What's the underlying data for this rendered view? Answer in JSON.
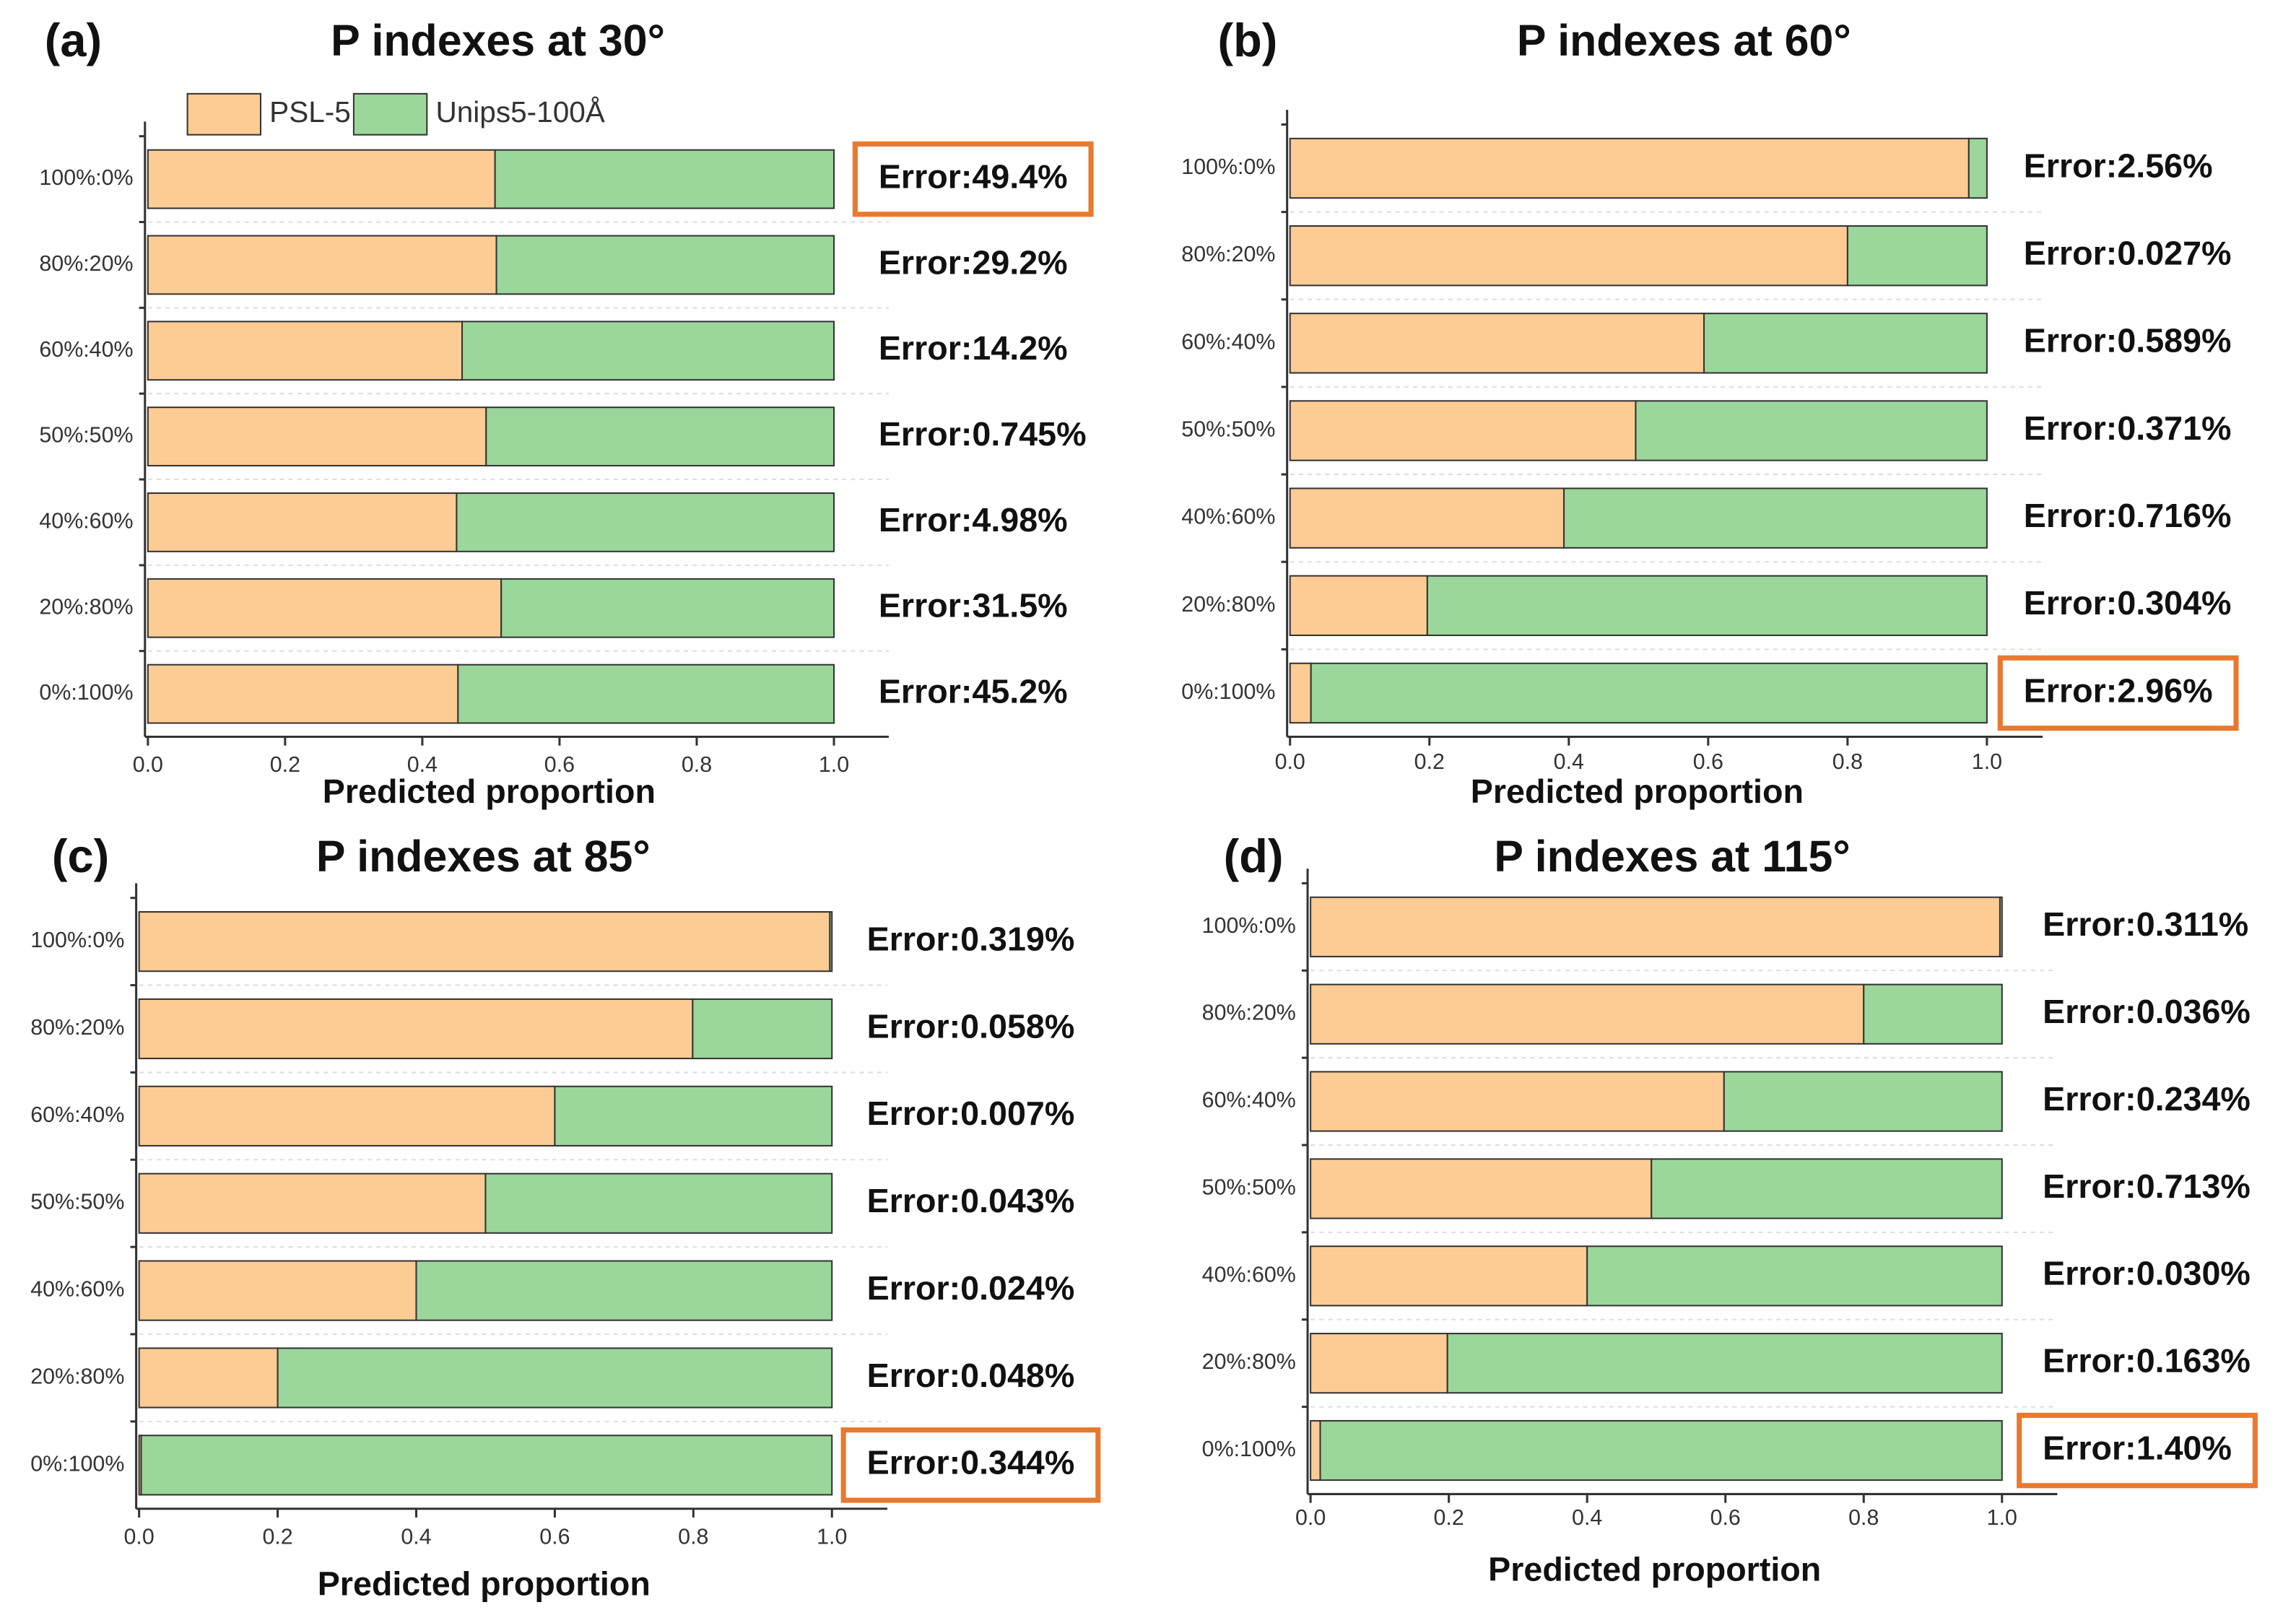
{
  "chart_data": [
    {
      "type": "stacked_barh",
      "panel": "(a)",
      "title": "P indexes at 30°",
      "xlabel": "Predicted proportion",
      "categories": [
        "100%:0%",
        "80%:20%",
        "60%:40%",
        "50%:50%",
        "40%:60%",
        "20%:80%",
        "0%:100%"
      ],
      "series": [
        {
          "name": "PSL-5",
          "color": "#fdcb94",
          "values": [
            0.506,
            0.508,
            0.458,
            0.493,
            0.45,
            0.515,
            0.452
          ]
        },
        {
          "name": "Unips5-100Å",
          "color": "#9bd69b",
          "values": [
            0.494,
            0.492,
            0.542,
            0.507,
            0.55,
            0.485,
            0.548
          ]
        }
      ],
      "annotations": [
        "Error:49.4%",
        "Error:29.2%",
        "Error:14.2%",
        "Error:0.745%",
        "Error:4.98%",
        "Error:31.5%",
        "Error:45.2%"
      ],
      "boxed_annotation": 0,
      "legend": true,
      "xlim": [
        0,
        1.08
      ],
      "xticks": [
        {
          "value": 0,
          "label": "0.0"
        },
        0.2,
        0.4,
        0.6,
        0.8,
        {
          "value": 1,
          "label": "1.0"
        }
      ]
    },
    {
      "type": "stacked_barh",
      "panel": "(b)",
      "title": "P indexes at 60°",
      "xlabel": "Predicted proportion",
      "categories": [
        "100%:0%",
        "80%:20%",
        "60%:40%",
        "50%:50%",
        "40%:60%",
        "20%:80%",
        "0%:100%"
      ],
      "series": [
        {
          "color": "#fdcb94",
          "values": [
            0.974,
            0.8,
            0.594,
            0.496,
            0.393,
            0.197,
            0.03
          ]
        },
        {
          "color": "#9bd69b",
          "values": [
            0.026,
            0.2,
            0.406,
            0.504,
            0.607,
            0.803,
            0.97
          ]
        }
      ],
      "annotations": [
        "Error:2.56%",
        "Error:0.027%",
        "Error:0.589%",
        "Error:0.371%",
        "Error:0.716%",
        "Error:0.304%",
        "Error:2.96%"
      ],
      "boxed_annotation": 6,
      "legend": false,
      "xlim": [
        0,
        1.08
      ],
      "xticks": [
        {
          "value": 0,
          "label": "0.0"
        },
        0.2,
        0.4,
        0.6,
        0.8,
        {
          "value": 1,
          "label": "1.0"
        }
      ]
    },
    {
      "type": "stacked_barh",
      "panel": "(c)",
      "title": "P indexes at 85°",
      "xlabel": "Predicted proportion",
      "categories": [
        "100%:0%",
        "80%:20%",
        "60%:40%",
        "50%:50%",
        "40%:60%",
        "20%:80%",
        "0%:100%"
      ],
      "series": [
        {
          "color": "#fdcb94",
          "values": [
            0.997,
            0.799,
            0.6,
            0.5,
            0.4,
            0.2,
            0.003
          ]
        },
        {
          "color": "#9bd69b",
          "values": [
            0.003,
            0.201,
            0.4,
            0.5,
            0.6,
            0.8,
            0.997
          ]
        }
      ],
      "annotations": [
        "Error:0.319%",
        "Error:0.058%",
        "Error:0.007%",
        "Error:0.043%",
        "Error:0.024%",
        "Error:0.048%",
        "Error:0.344%"
      ],
      "boxed_annotation": 6,
      "legend": false,
      "xlim": [
        0,
        1.08
      ],
      "xticks": [
        {
          "value": 0,
          "label": "0.0"
        },
        0.2,
        0.4,
        0.6,
        0.8,
        {
          "value": 1,
          "label": "1.0"
        }
      ]
    },
    {
      "type": "stacked_barh",
      "panel": "(d)",
      "title": "P indexes at 115°",
      "xlabel": "Predicted proportion",
      "categories": [
        "100%:0%",
        "80%:20%",
        "60%:40%",
        "50%:50%",
        "40%:60%",
        "20%:80%",
        "0%:100%"
      ],
      "series": [
        {
          "color": "#fdcb94",
          "values": [
            0.997,
            0.8,
            0.598,
            0.493,
            0.4,
            0.198,
            0.014
          ]
        },
        {
          "color": "#9bd69b",
          "values": [
            0.003,
            0.2,
            0.402,
            0.507,
            0.6,
            0.802,
            0.986
          ]
        }
      ],
      "annotations": [
        "Error:0.311%",
        "Error:0.036%",
        "Error:0.234%",
        "Error:0.713%",
        "Error:0.030%",
        "Error:0.163%",
        "Error:1.40%"
      ],
      "boxed_annotation": 6,
      "legend": false,
      "xlim": [
        0,
        1.08
      ],
      "xticks": [
        {
          "value": 0,
          "label": "0.0"
        },
        0.2,
        0.4,
        0.6,
        0.8,
        {
          "value": 1,
          "label": "1.0"
        }
      ]
    }
  ]
}
